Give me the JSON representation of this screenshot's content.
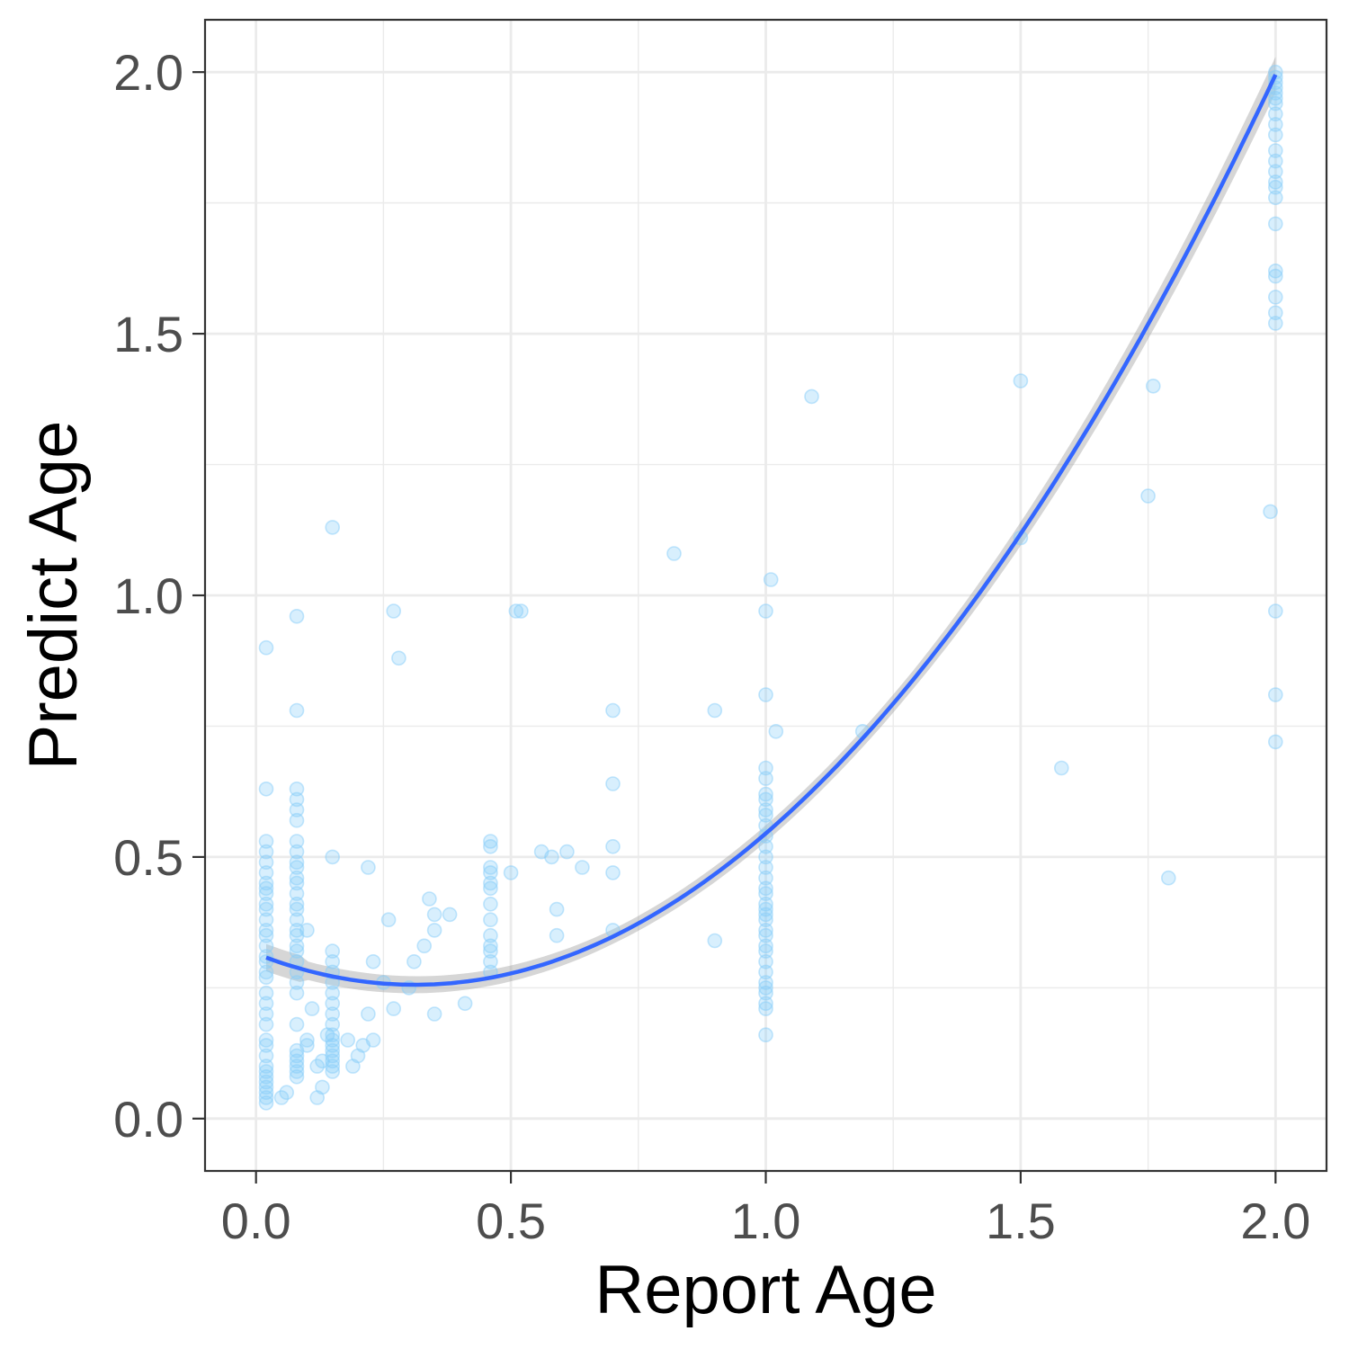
{
  "chart_data": {
    "type": "scatter",
    "xlabel": "Report Age",
    "ylabel": "Predict Age",
    "xlim": [
      -0.1,
      2.1
    ],
    "ylim": [
      -0.1,
      2.1
    ],
    "x_ticks": [
      0.0,
      0.5,
      1.0,
      1.5,
      2.0
    ],
    "x_tick_labels": [
      "0.0",
      "0.5",
      "1.0",
      "1.5",
      "2.0"
    ],
    "y_ticks": [
      0.0,
      0.5,
      1.0,
      1.5,
      2.0
    ],
    "y_tick_labels": [
      "0.0",
      "0.5",
      "1.0",
      "1.5",
      "2.0"
    ],
    "grid": true,
    "point_color": "#87CEFA",
    "line_color": "#3366FF",
    "band_color": "#999999",
    "points": [
      [
        0.02,
        0.9
      ],
      [
        0.02,
        0.63
      ],
      [
        0.02,
        0.53
      ],
      [
        0.02,
        0.51
      ],
      [
        0.02,
        0.49
      ],
      [
        0.02,
        0.47
      ],
      [
        0.02,
        0.45
      ],
      [
        0.02,
        0.44
      ],
      [
        0.02,
        0.43
      ],
      [
        0.02,
        0.41
      ],
      [
        0.02,
        0.4
      ],
      [
        0.02,
        0.38
      ],
      [
        0.02,
        0.36
      ],
      [
        0.02,
        0.35
      ],
      [
        0.02,
        0.33
      ],
      [
        0.02,
        0.31
      ],
      [
        0.02,
        0.3
      ],
      [
        0.02,
        0.28
      ],
      [
        0.02,
        0.27
      ],
      [
        0.02,
        0.24
      ],
      [
        0.02,
        0.22
      ],
      [
        0.02,
        0.2
      ],
      [
        0.02,
        0.18
      ],
      [
        0.02,
        0.15
      ],
      [
        0.02,
        0.14
      ],
      [
        0.02,
        0.12
      ],
      [
        0.02,
        0.1
      ],
      [
        0.02,
        0.09
      ],
      [
        0.02,
        0.08
      ],
      [
        0.02,
        0.07
      ],
      [
        0.02,
        0.06
      ],
      [
        0.02,
        0.05
      ],
      [
        0.02,
        0.04
      ],
      [
        0.02,
        0.03
      ],
      [
        0.05,
        0.04
      ],
      [
        0.06,
        0.05
      ],
      [
        0.08,
        0.96
      ],
      [
        0.08,
        0.78
      ],
      [
        0.08,
        0.63
      ],
      [
        0.08,
        0.61
      ],
      [
        0.08,
        0.59
      ],
      [
        0.08,
        0.57
      ],
      [
        0.08,
        0.53
      ],
      [
        0.08,
        0.51
      ],
      [
        0.08,
        0.49
      ],
      [
        0.08,
        0.48
      ],
      [
        0.08,
        0.46
      ],
      [
        0.08,
        0.45
      ],
      [
        0.08,
        0.43
      ],
      [
        0.08,
        0.41
      ],
      [
        0.08,
        0.4
      ],
      [
        0.08,
        0.38
      ],
      [
        0.08,
        0.36
      ],
      [
        0.08,
        0.35
      ],
      [
        0.08,
        0.33
      ],
      [
        0.08,
        0.32
      ],
      [
        0.08,
        0.3
      ],
      [
        0.08,
        0.28
      ],
      [
        0.08,
        0.26
      ],
      [
        0.08,
        0.24
      ],
      [
        0.08,
        0.18
      ],
      [
        0.08,
        0.13
      ],
      [
        0.08,
        0.12
      ],
      [
        0.08,
        0.11
      ],
      [
        0.08,
        0.1
      ],
      [
        0.08,
        0.09
      ],
      [
        0.08,
        0.08
      ],
      [
        0.1,
        0.36
      ],
      [
        0.1,
        0.15
      ],
      [
        0.1,
        0.14
      ],
      [
        0.11,
        0.21
      ],
      [
        0.12,
        0.04
      ],
      [
        0.12,
        0.1
      ],
      [
        0.13,
        0.06
      ],
      [
        0.13,
        0.11
      ],
      [
        0.14,
        0.16
      ],
      [
        0.15,
        1.13
      ],
      [
        0.15,
        0.5
      ],
      [
        0.15,
        0.32
      ],
      [
        0.15,
        0.3
      ],
      [
        0.15,
        0.28
      ],
      [
        0.15,
        0.26
      ],
      [
        0.15,
        0.24
      ],
      [
        0.15,
        0.22
      ],
      [
        0.15,
        0.2
      ],
      [
        0.15,
        0.18
      ],
      [
        0.15,
        0.16
      ],
      [
        0.15,
        0.15
      ],
      [
        0.15,
        0.14
      ],
      [
        0.15,
        0.13
      ],
      [
        0.15,
        0.12
      ],
      [
        0.15,
        0.11
      ],
      [
        0.15,
        0.1
      ],
      [
        0.15,
        0.09
      ],
      [
        0.18,
        0.15
      ],
      [
        0.19,
        0.1
      ],
      [
        0.2,
        0.12
      ],
      [
        0.21,
        0.14
      ],
      [
        0.22,
        0.48
      ],
      [
        0.22,
        0.2
      ],
      [
        0.23,
        0.3
      ],
      [
        0.23,
        0.15
      ],
      [
        0.25,
        0.26
      ],
      [
        0.26,
        0.38
      ],
      [
        0.27,
        0.97
      ],
      [
        0.27,
        0.21
      ],
      [
        0.28,
        0.88
      ],
      [
        0.3,
        0.25
      ],
      [
        0.31,
        0.3
      ],
      [
        0.33,
        0.33
      ],
      [
        0.34,
        0.42
      ],
      [
        0.35,
        0.39
      ],
      [
        0.35,
        0.36
      ],
      [
        0.35,
        0.2
      ],
      [
        0.38,
        0.39
      ],
      [
        0.41,
        0.22
      ],
      [
        0.46,
        0.53
      ],
      [
        0.46,
        0.52
      ],
      [
        0.46,
        0.48
      ],
      [
        0.46,
        0.47
      ],
      [
        0.46,
        0.45
      ],
      [
        0.46,
        0.44
      ],
      [
        0.46,
        0.41
      ],
      [
        0.46,
        0.38
      ],
      [
        0.46,
        0.35
      ],
      [
        0.46,
        0.33
      ],
      [
        0.46,
        0.32
      ],
      [
        0.46,
        0.3
      ],
      [
        0.46,
        0.28
      ],
      [
        0.5,
        0.47
      ],
      [
        0.51,
        0.97
      ],
      [
        0.52,
        0.97
      ],
      [
        0.56,
        0.51
      ],
      [
        0.58,
        0.5
      ],
      [
        0.59,
        0.4
      ],
      [
        0.59,
        0.35
      ],
      [
        0.61,
        0.51
      ],
      [
        0.64,
        0.48
      ],
      [
        0.7,
        0.78
      ],
      [
        0.7,
        0.64
      ],
      [
        0.7,
        0.52
      ],
      [
        0.7,
        0.47
      ],
      [
        0.7,
        0.36
      ],
      [
        0.82,
        1.08
      ],
      [
        0.9,
        0.78
      ],
      [
        0.9,
        0.34
      ],
      [
        1.0,
        0.97
      ],
      [
        1.0,
        0.81
      ],
      [
        1.0,
        0.67
      ],
      [
        1.0,
        0.65
      ],
      [
        1.0,
        0.62
      ],
      [
        1.0,
        0.61
      ],
      [
        1.0,
        0.59
      ],
      [
        1.0,
        0.58
      ],
      [
        1.0,
        0.56
      ],
      [
        1.0,
        0.54
      ],
      [
        1.0,
        0.52
      ],
      [
        1.0,
        0.5
      ],
      [
        1.0,
        0.48
      ],
      [
        1.0,
        0.46
      ],
      [
        1.0,
        0.44
      ],
      [
        1.0,
        0.43
      ],
      [
        1.0,
        0.41
      ],
      [
        1.0,
        0.4
      ],
      [
        1.0,
        0.39
      ],
      [
        1.0,
        0.38
      ],
      [
        1.0,
        0.36
      ],
      [
        1.0,
        0.35
      ],
      [
        1.0,
        0.33
      ],
      [
        1.0,
        0.32
      ],
      [
        1.0,
        0.3
      ],
      [
        1.0,
        0.28
      ],
      [
        1.0,
        0.26
      ],
      [
        1.0,
        0.25
      ],
      [
        1.0,
        0.24
      ],
      [
        1.0,
        0.22
      ],
      [
        1.0,
        0.21
      ],
      [
        1.0,
        0.16
      ],
      [
        1.01,
        1.03
      ],
      [
        1.02,
        0.74
      ],
      [
        1.09,
        1.38
      ],
      [
        1.19,
        0.74
      ],
      [
        1.5,
        1.41
      ],
      [
        1.5,
        1.11
      ],
      [
        1.58,
        0.67
      ],
      [
        1.75,
        1.19
      ],
      [
        1.76,
        1.4
      ],
      [
        1.79,
        0.46
      ],
      [
        1.99,
        1.16
      ],
      [
        2.0,
        2.0
      ],
      [
        2.0,
        1.99
      ],
      [
        2.0,
        1.98
      ],
      [
        2.0,
        1.97
      ],
      [
        2.0,
        1.96
      ],
      [
        2.0,
        1.95
      ],
      [
        2.0,
        1.94
      ],
      [
        2.0,
        1.92
      ],
      [
        2.0,
        1.9
      ],
      [
        2.0,
        1.88
      ],
      [
        2.0,
        1.85
      ],
      [
        2.0,
        1.83
      ],
      [
        2.0,
        1.81
      ],
      [
        2.0,
        1.79
      ],
      [
        2.0,
        1.78
      ],
      [
        2.0,
        1.76
      ],
      [
        2.0,
        1.71
      ],
      [
        2.0,
        1.62
      ],
      [
        2.0,
        1.61
      ],
      [
        2.0,
        1.57
      ],
      [
        2.0,
        1.54
      ],
      [
        2.0,
        1.52
      ],
      [
        2.0,
        0.97
      ],
      [
        2.0,
        0.81
      ],
      [
        2.0,
        0.72
      ]
    ],
    "fit": {
      "method": "quadratic",
      "x_range": [
        0.02,
        2.0
      ],
      "coefficients": [
        0.315,
        -0.38,
        0.61
      ]
    }
  }
}
